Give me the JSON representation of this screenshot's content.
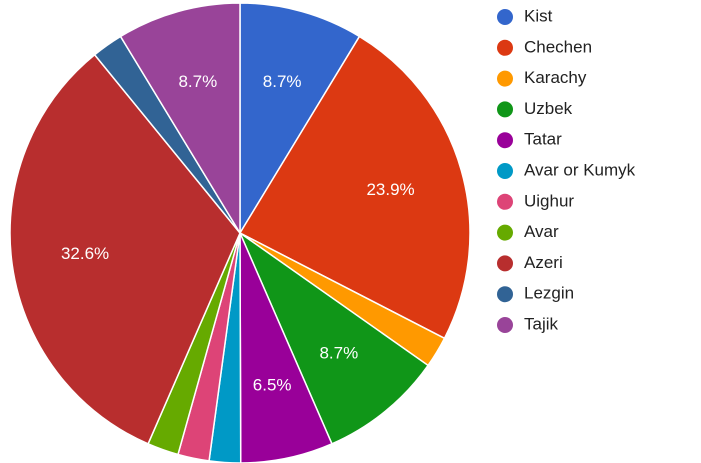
{
  "chart_data": {
    "type": "pie",
    "categories": [
      "Kist",
      "Chechen",
      "Karachy",
      "Uzbek",
      "Tatar",
      "Avar or Kumyk",
      "Uighur",
      "Avar",
      "Azeri",
      "Lezgin",
      "Tajik"
    ],
    "values": [
      8.7,
      23.9,
      2.2,
      8.7,
      6.5,
      2.2,
      2.2,
      2.2,
      32.6,
      2.2,
      8.7
    ],
    "value_labels": [
      "8.7%",
      "23.9%",
      null,
      "8.7%",
      "6.5%",
      null,
      null,
      null,
      "32.6%",
      null,
      "8.7%"
    ],
    "colors": [
      "#3366cc",
      "#dc3912",
      "#ff9900",
      "#109618",
      "#990099",
      "#0099c6",
      "#dd4477",
      "#66aa00",
      "#b82e2e",
      "#316395",
      "#994499"
    ],
    "legend": "right"
  }
}
